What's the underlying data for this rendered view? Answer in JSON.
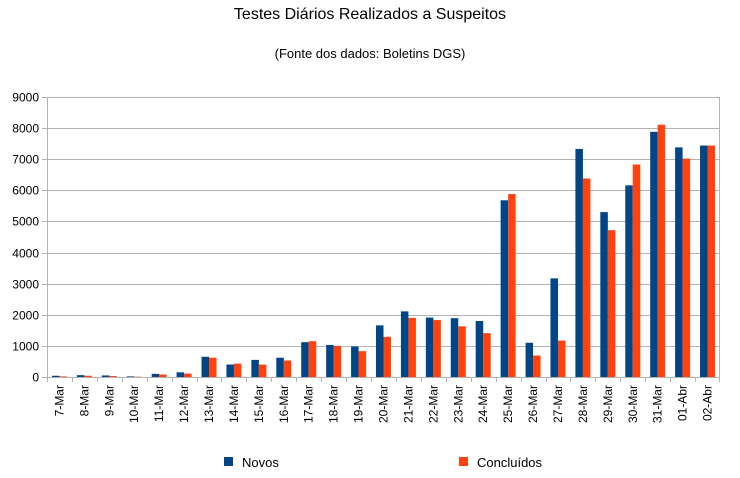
{
  "chart_data": {
    "type": "bar",
    "title": "Testes Diários Realizados a Suspeitos",
    "subtitle": "(Fonte dos dados: Boletins DGS)",
    "xlabel": "",
    "ylabel": "",
    "ylim": [
      0,
      9000
    ],
    "yticks": [
      0,
      1000,
      2000,
      3000,
      4000,
      5000,
      6000,
      7000,
      8000,
      9000
    ],
    "grid": true,
    "legend": "bottom",
    "categories": [
      "7-Mar",
      "8-Mar",
      "9-Mar",
      "10-Mar",
      "11-Mar",
      "12-Mar",
      "13-Mar",
      "14-Mar",
      "15-Mar",
      "16-Mar",
      "17-Mar",
      "18-Mar",
      "19-Mar",
      "20-Mar",
      "21-Mar",
      "22-Mar",
      "23-Mar",
      "24-Mar",
      "25-Mar",
      "26-Mar",
      "27-Mar",
      "28-Mar",
      "29-Mar",
      "30-Mar",
      "31-Mar",
      "01-Abr",
      "02-Abr"
    ],
    "series": [
      {
        "name": "Novos",
        "color": "#004586",
        "values": [
          40,
          60,
          50,
          20,
          100,
          150,
          650,
          400,
          550,
          620,
          1120,
          1030,
          980,
          1660,
          2110,
          1910,
          1890,
          1800,
          5680,
          1100,
          3170,
          7330,
          5300,
          6160,
          7880,
          7380,
          7440
        ]
      },
      {
        "name": "Concluídos",
        "color": "#ff420e",
        "values": [
          20,
          40,
          30,
          10,
          80,
          110,
          620,
          430,
          400,
          530,
          1150,
          1000,
          830,
          1290,
          1900,
          1830,
          1630,
          1410,
          5880,
          690,
          1170,
          6380,
          4720,
          6830,
          8110,
          7020,
          7440
        ]
      }
    ]
  }
}
